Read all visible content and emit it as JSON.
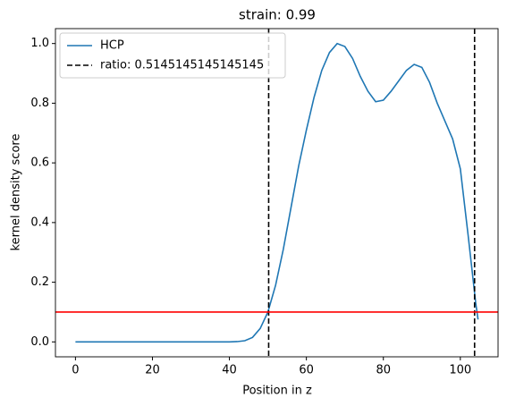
{
  "chart_data": {
    "type": "line",
    "title": "strain: 0.99",
    "xlabel": "Position in z",
    "ylabel": "kernel density score",
    "x": [
      0,
      2,
      4,
      6,
      8,
      10,
      12,
      14,
      16,
      18,
      20,
      22,
      24,
      26,
      28,
      30,
      32,
      34,
      36,
      38,
      40,
      42,
      44,
      46,
      48,
      50,
      52,
      54,
      56,
      58,
      60,
      62,
      64,
      66,
      68,
      70,
      72,
      74,
      76,
      78,
      80,
      82,
      84,
      86,
      88,
      90,
      92,
      94,
      96,
      98,
      100,
      102,
      104,
      104.6
    ],
    "series": [
      {
        "name": "HCP",
        "color": "#1f77b4",
        "values": [
          0,
          0,
          0,
          0,
          0,
          0,
          0,
          0,
          0,
          0,
          0,
          0,
          0,
          0,
          0,
          0,
          0,
          0,
          0,
          0,
          0,
          0.001,
          0.004,
          0.015,
          0.045,
          0.1,
          0.19,
          0.31,
          0.45,
          0.59,
          0.71,
          0.82,
          0.91,
          0.97,
          1.0,
          0.99,
          0.95,
          0.89,
          0.84,
          0.805,
          0.81,
          0.84,
          0.875,
          0.91,
          0.93,
          0.92,
          0.87,
          0.8,
          0.74,
          0.68,
          0.58,
          0.36,
          0.13,
          0.075
        ]
      }
    ],
    "vlines": {
      "name": "ratio: 0.5145145145145145",
      "color": "#000000",
      "x": [
        50.2,
        103.7
      ]
    },
    "hline": {
      "y": 0.1,
      "color": "#ff0000"
    },
    "xlim": [
      -5.2,
      109.8
    ],
    "ylim": [
      -0.05,
      1.05
    ],
    "xticks": [
      0,
      20,
      40,
      60,
      80,
      100
    ],
    "yticks": [
      {
        "value": 0,
        "label": "0.0"
      },
      0.2,
      0.4,
      0.6,
      0.8,
      {
        "value": 1,
        "label": "1.0"
      }
    ],
    "legend": "upper left"
  }
}
